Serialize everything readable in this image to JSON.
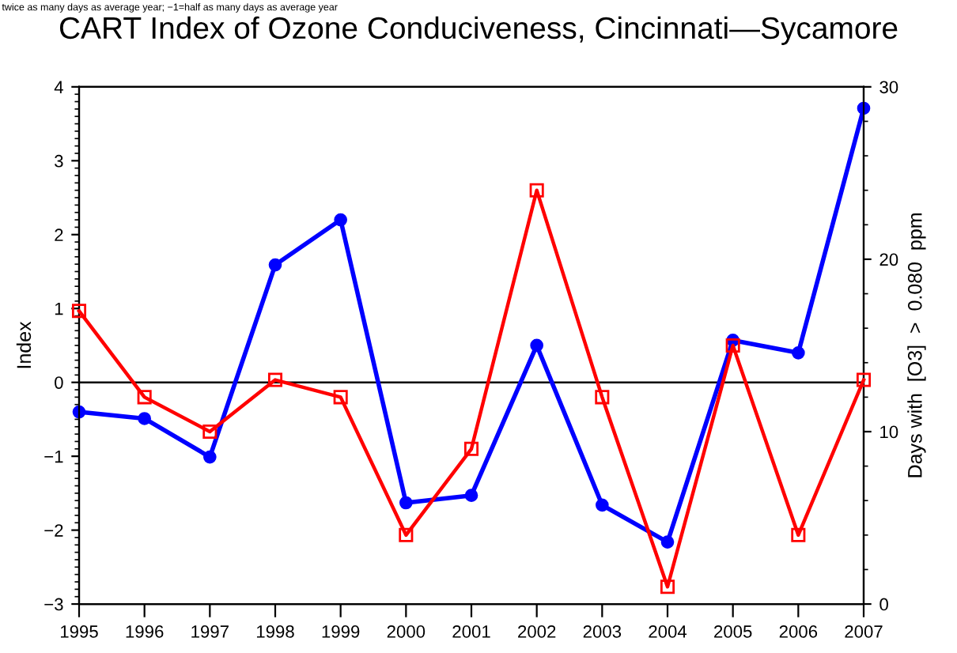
{
  "chart_data": {
    "type": "line",
    "title": "CART Index of Ozone Conduciveness, Cincinnati—Sycamore",
    "ylabel": "Index",
    "y2label": "Days with  [O3]  >  0.080  ppm",
    "annotations": [
      "twice as many days as average year; −1=half as many days as average year"
    ],
    "x": [
      1995,
      1996,
      1997,
      1998,
      1999,
      2000,
      2001,
      2002,
      2003,
      2004,
      2005,
      2006,
      2007
    ],
    "xlim": [
      1995,
      2007
    ],
    "xticks": [
      1995,
      1996,
      1997,
      1998,
      1999,
      2000,
      2001,
      2002,
      2003,
      2004,
      2005,
      2006,
      2007
    ],
    "ylim": [
      -3,
      4
    ],
    "yticks": [
      -3,
      -2,
      -1,
      0,
      1,
      2,
      3,
      4
    ],
    "y2lim": [
      0,
      30
    ],
    "y2ticks": [
      0,
      10,
      20,
      30
    ],
    "ref_lines": [
      {
        "axis": "y",
        "value": 0,
        "color": "#000000"
      }
    ],
    "grid": false,
    "legend": false,
    "series": [
      {
        "color": "#0000ff",
        "marker": "circle",
        "values": [
          -0.4,
          -0.49,
          -1.01,
          1.59,
          2.2,
          -1.63,
          -1.53,
          0.5,
          -1.66,
          -2.16,
          0.57,
          0.4,
          3.71
        ]
      },
      {
        "color": "#ff0000",
        "marker": "square",
        "axis": "y2",
        "values": [
          17,
          12,
          10,
          13,
          12,
          4,
          9,
          24,
          12,
          1,
          15,
          4,
          13
        ]
      }
    ]
  }
}
